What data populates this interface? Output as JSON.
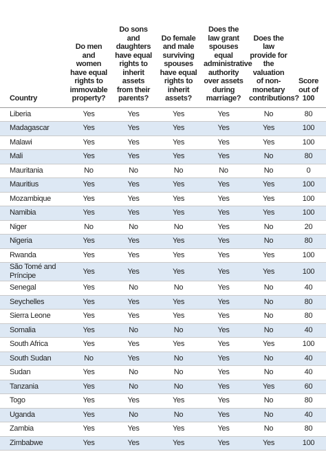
{
  "table": {
    "columns": [
      "Country",
      "Do men and women have equal rights to immovable property?",
      "Do sons and daughters have equal rights to inherit assets from their parents?",
      "Do female and male surviving spouses have equal rights to inherit assets?",
      "Does the law grant spouses equal administrative authority over assets during marriage?",
      "Does the law provide for the valuation of non-monetary contributions?",
      "Score out of 100"
    ],
    "rows": [
      [
        "Liberia",
        "Yes",
        "Yes",
        "Yes",
        "Yes",
        "No",
        80
      ],
      [
        "Madagascar",
        "Yes",
        "Yes",
        "Yes",
        "Yes",
        "Yes",
        100
      ],
      [
        "Malawi",
        "Yes",
        "Yes",
        "Yes",
        "Yes",
        "Yes",
        100
      ],
      [
        "Mali",
        "Yes",
        "Yes",
        "Yes",
        "Yes",
        "No",
        80
      ],
      [
        "Mauritania",
        "No",
        "No",
        "No",
        "No",
        "No",
        0
      ],
      [
        "Mauritius",
        "Yes",
        "Yes",
        "Yes",
        "Yes",
        "Yes",
        100
      ],
      [
        "Mozambique",
        "Yes",
        "Yes",
        "Yes",
        "Yes",
        "Yes",
        100
      ],
      [
        "Namibia",
        "Yes",
        "Yes",
        "Yes",
        "Yes",
        "Yes",
        100
      ],
      [
        "Niger",
        "No",
        "No",
        "No",
        "Yes",
        "No",
        20
      ],
      [
        "Nigeria",
        "Yes",
        "Yes",
        "Yes",
        "Yes",
        "No",
        80
      ],
      [
        "Rwanda",
        "Yes",
        "Yes",
        "Yes",
        "Yes",
        "Yes",
        100
      ],
      [
        "São Tomé and Príncipe",
        "Yes",
        "Yes",
        "Yes",
        "Yes",
        "Yes",
        100
      ],
      [
        "Senegal",
        "Yes",
        "No",
        "No",
        "Yes",
        "No",
        40
      ],
      [
        "Seychelles",
        "Yes",
        "Yes",
        "Yes",
        "Yes",
        "No",
        80
      ],
      [
        "Sierra Leone",
        "Yes",
        "Yes",
        "Yes",
        "Yes",
        "No",
        80
      ],
      [
        "Somalia",
        "Yes",
        "No",
        "No",
        "Yes",
        "No",
        40
      ],
      [
        "South Africa",
        "Yes",
        "Yes",
        "Yes",
        "Yes",
        "Yes",
        100
      ],
      [
        "South Sudan",
        "No",
        "Yes",
        "No",
        "Yes",
        "No",
        40
      ],
      [
        "Sudan",
        "Yes",
        "No",
        "No",
        "Yes",
        "No",
        40
      ],
      [
        "Tanzania",
        "Yes",
        "No",
        "No",
        "Yes",
        "Yes",
        60
      ],
      [
        "Togo",
        "Yes",
        "Yes",
        "Yes",
        "Yes",
        "No",
        80
      ],
      [
        "Uganda",
        "Yes",
        "No",
        "No",
        "Yes",
        "No",
        40
      ],
      [
        "Zambia",
        "Yes",
        "Yes",
        "Yes",
        "Yes",
        "No",
        80
      ],
      [
        "Zimbabwe",
        "Yes",
        "Yes",
        "Yes",
        "Yes",
        "Yes",
        100
      ]
    ]
  }
}
